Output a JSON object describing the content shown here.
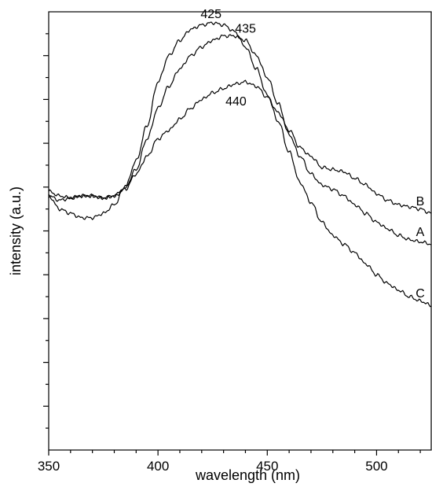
{
  "chart_data": {
    "type": "line",
    "title": "",
    "xlabel": "wavelength (nm)",
    "ylabel": "intensity (a.u.)",
    "xlim": [
      350,
      525
    ],
    "ylim": [
      0,
      1
    ],
    "x_ticks": [
      350,
      400,
      450,
      500
    ],
    "x_tick_labels": [
      "350",
      "400",
      "450",
      "500"
    ],
    "y_ticks": [
      0.1,
      0.2,
      0.3,
      0.4,
      0.5,
      0.6,
      0.7,
      0.8,
      0.9
    ],
    "y_tick_labels_shown": false,
    "grid": false,
    "legend": "none",
    "series": [
      {
        "name": "A",
        "line_color": "#000000",
        "x": [
          350,
          355,
          360,
          365,
          370,
          375,
          380,
          385,
          390,
          395,
          400,
          405,
          410,
          415,
          420,
          425,
          430,
          435,
          440,
          445,
          450,
          455,
          460,
          465,
          470,
          475,
          480,
          485,
          490,
          495,
          500,
          505,
          510,
          515,
          520,
          525
        ],
        "y": [
          0.58,
          0.57,
          0.575,
          0.58,
          0.58,
          0.575,
          0.58,
          0.6,
          0.64,
          0.71,
          0.78,
          0.83,
          0.87,
          0.9,
          0.92,
          0.935,
          0.945,
          0.945,
          0.935,
          0.9,
          0.85,
          0.79,
          0.72,
          0.67,
          0.63,
          0.605,
          0.595,
          0.58,
          0.56,
          0.54,
          0.52,
          0.505,
          0.49,
          0.48,
          0.475,
          0.47
        ]
      },
      {
        "name": "B",
        "line_color": "#000000",
        "x": [
          350,
          355,
          360,
          365,
          370,
          375,
          380,
          385,
          390,
          395,
          400,
          405,
          410,
          415,
          420,
          425,
          430,
          435,
          440,
          445,
          450,
          455,
          460,
          465,
          470,
          475,
          480,
          485,
          490,
          495,
          500,
          505,
          510,
          515,
          520,
          525
        ],
        "y": [
          0.59,
          0.58,
          0.575,
          0.58,
          0.58,
          0.575,
          0.58,
          0.595,
          0.63,
          0.67,
          0.71,
          0.73,
          0.755,
          0.78,
          0.8,
          0.815,
          0.825,
          0.835,
          0.84,
          0.83,
          0.805,
          0.77,
          0.73,
          0.69,
          0.67,
          0.645,
          0.64,
          0.635,
          0.62,
          0.605,
          0.585,
          0.57,
          0.56,
          0.555,
          0.55,
          0.54
        ]
      },
      {
        "name": "C",
        "line_color": "#000000",
        "x": [
          350,
          355,
          360,
          365,
          370,
          375,
          380,
          385,
          390,
          395,
          400,
          405,
          410,
          415,
          420,
          425,
          430,
          435,
          440,
          445,
          450,
          455,
          460,
          465,
          470,
          475,
          480,
          485,
          490,
          495,
          500,
          505,
          510,
          515,
          520,
          525
        ],
        "y": [
          0.58,
          0.55,
          0.54,
          0.53,
          0.53,
          0.54,
          0.56,
          0.6,
          0.66,
          0.74,
          0.84,
          0.9,
          0.935,
          0.96,
          0.97,
          0.975,
          0.97,
          0.955,
          0.92,
          0.87,
          0.81,
          0.75,
          0.68,
          0.61,
          0.565,
          0.52,
          0.49,
          0.47,
          0.45,
          0.425,
          0.4,
          0.38,
          0.365,
          0.35,
          0.34,
          0.33
        ]
      }
    ],
    "annotations": [
      {
        "text": "425",
        "x": 425,
        "y": 0.975
      },
      {
        "text": "435",
        "x": 435,
        "y": 0.945
      },
      {
        "text": "440",
        "x": 440,
        "y": 0.84
      }
    ],
    "curve_labels": [
      {
        "text": "B",
        "y": 0.54
      },
      {
        "text": "A",
        "y": 0.47
      },
      {
        "text": "C",
        "y": 0.33
      }
    ]
  }
}
